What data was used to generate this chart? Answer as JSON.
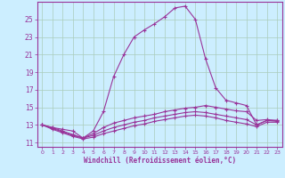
{
  "xlabel": "Windchill (Refroidissement éolien,°C)",
  "bg_color": "#cceeff",
  "grid_color": "#aaccbb",
  "line_color": "#993399",
  "x_ticks": [
    0,
    1,
    2,
    3,
    4,
    5,
    6,
    7,
    8,
    9,
    10,
    11,
    12,
    13,
    14,
    15,
    16,
    17,
    18,
    19,
    20,
    21,
    22,
    23
  ],
  "y_ticks": [
    11,
    13,
    15,
    17,
    19,
    21,
    23,
    25
  ],
  "ylim": [
    10.5,
    27.0
  ],
  "xlim": [
    -0.5,
    23.5
  ],
  "series": [
    [
      13.0,
      12.7,
      12.5,
      12.3,
      11.5,
      12.3,
      14.5,
      18.5,
      21.0,
      23.0,
      23.8,
      24.5,
      25.3,
      26.3,
      26.5,
      25.0,
      20.5,
      17.2,
      15.8,
      15.5,
      15.2,
      13.0,
      13.5,
      13.5
    ],
    [
      13.0,
      12.7,
      12.3,
      11.9,
      11.5,
      12.0,
      12.7,
      13.2,
      13.5,
      13.8,
      14.0,
      14.2,
      14.5,
      14.7,
      14.9,
      15.0,
      15.2,
      15.0,
      14.8,
      14.6,
      14.5,
      13.5,
      13.6,
      13.5
    ],
    [
      13.0,
      12.6,
      12.2,
      11.8,
      11.5,
      11.8,
      12.3,
      12.7,
      13.0,
      13.3,
      13.5,
      13.8,
      14.0,
      14.2,
      14.4,
      14.5,
      14.4,
      14.2,
      14.0,
      13.8,
      13.6,
      13.0,
      13.5,
      13.4
    ],
    [
      13.0,
      12.5,
      12.1,
      11.7,
      11.4,
      11.6,
      12.0,
      12.3,
      12.6,
      12.9,
      13.1,
      13.4,
      13.6,
      13.8,
      14.0,
      14.1,
      14.0,
      13.8,
      13.5,
      13.3,
      13.1,
      12.8,
      13.3,
      13.3
    ]
  ]
}
